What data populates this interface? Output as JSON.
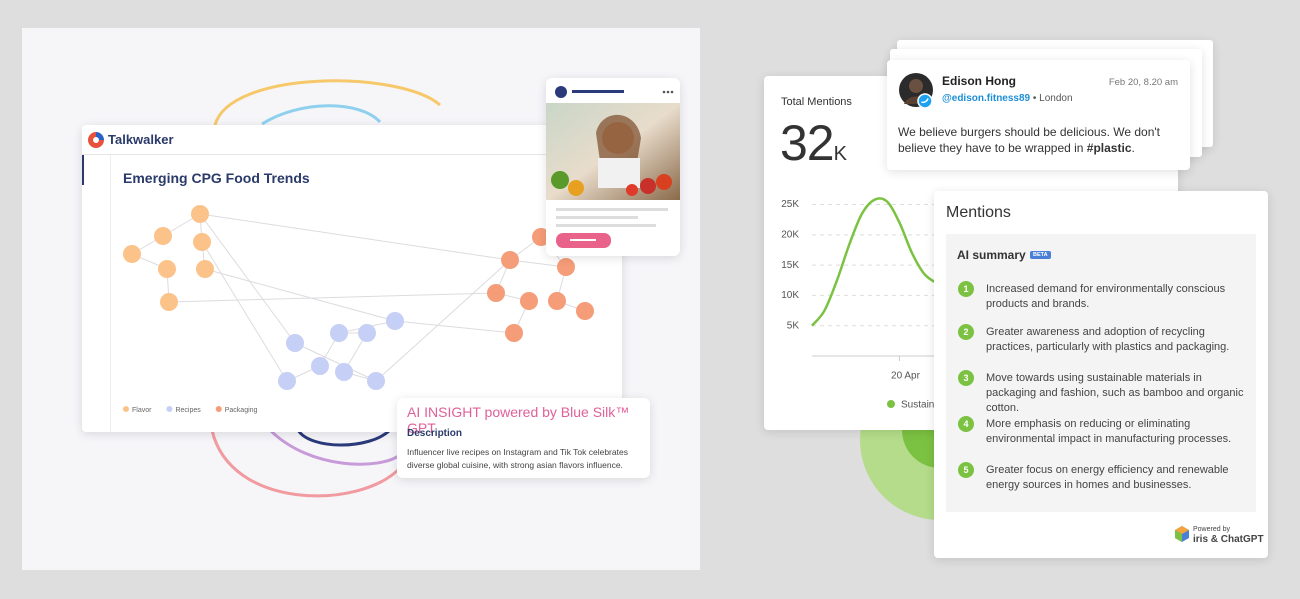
{
  "left": {
    "brand": "Talkwalker",
    "title": "Emerging CPG Food Trends",
    "legend": [
      "Flavor",
      "Recipes",
      "Packaging"
    ],
    "insight": {
      "title": "AI INSIGHT powered by Blue Silk™ GPT",
      "subtitle": "Description",
      "body": "Influencer live recipes on Instagram and Tik Tok celebrates diverse global cuisine, with strong asian flavors influence."
    }
  },
  "mentions": {
    "label": "Total Mentions",
    "total": "32",
    "unit": "K",
    "chart": {
      "type": "line",
      "categories": [
        null,
        null,
        null,
        null,
        null,
        null,
        null,
        "20 Apr",
        null,
        null,
        null
      ],
      "series": [
        {
          "name": "Sustain",
          "color": "#7cc242",
          "values": [
            5000,
            7500,
            12500,
            18500,
            23500,
            25800,
            25500,
            22000,
            17000,
            13500,
            12000
          ]
        }
      ],
      "ylim": [
        0,
        27500
      ],
      "yticks": [
        {
          "value": 5000,
          "label": "5K"
        },
        {
          "value": 10000,
          "label": "10K"
        },
        {
          "value": 15000,
          "label": "15K"
        },
        {
          "value": 20000,
          "label": "20K"
        },
        {
          "value": 25000,
          "label": "25K"
        }
      ],
      "grid": true
    }
  },
  "tweet": {
    "name": "Edison Hong",
    "date": "Feb 20, 8.20 am",
    "handle": "@edison.fitness89",
    "location": "• London",
    "text": "We believe burgers should be delicious. We don't believe they have to be wrapped in ",
    "hashtag": "#plastic",
    "end": "."
  },
  "summary": {
    "title": "Mentions",
    "heading": "AI summary",
    "badge": "BETA",
    "items": [
      {
        "number": 1,
        "text": "Increased demand for environmentally conscious products and brands."
      },
      {
        "number": 2,
        "text": "Greater awareness and adoption of recycling practices, particularly with plastics and packaging."
      },
      {
        "number": 3,
        "text": "Move towards using sustainable materials in packaging and fashion, such as bamboo and organic cotton."
      },
      {
        "number": 4,
        "text": "More emphasis on reducing or eliminating environmental impact in manufacturing processes."
      },
      {
        "number": 5,
        "text": "Greater focus on energy efficiency and renewable energy sources in homes and businesses."
      }
    ],
    "powered": "Powered by",
    "engine": "iris & ChatGPT"
  }
}
